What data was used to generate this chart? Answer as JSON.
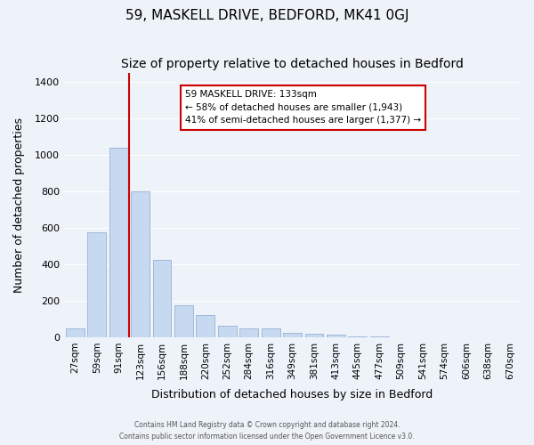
{
  "title": "59, MASKELL DRIVE, BEDFORD, MK41 0GJ",
  "subtitle": "Size of property relative to detached houses in Bedford",
  "xlabel": "Distribution of detached houses by size in Bedford",
  "ylabel": "Number of detached properties",
  "bar_labels": [
    "27sqm",
    "59sqm",
    "91sqm",
    "123sqm",
    "156sqm",
    "188sqm",
    "220sqm",
    "252sqm",
    "284sqm",
    "316sqm",
    "349sqm",
    "381sqm",
    "413sqm",
    "445sqm",
    "477sqm",
    "509sqm",
    "541sqm",
    "574sqm",
    "606sqm",
    "638sqm",
    "670sqm"
  ],
  "bar_values": [
    50,
    575,
    1040,
    800,
    425,
    175,
    120,
    62,
    50,
    50,
    25,
    20,
    15,
    5,
    5,
    0,
    0,
    0,
    0,
    0,
    0
  ],
  "bar_color": "#c6d9f0",
  "bar_edge_color": "#a0b8d8",
  "vline_index": 3,
  "vline_color": "#cc0000",
  "annotation_title": "59 MASKELL DRIVE: 133sqm",
  "annotation_line1": "← 58% of detached houses are smaller (1,943)",
  "annotation_line2": "41% of semi-detached houses are larger (1,377) →",
  "annotation_box_color": "#ffffff",
  "annotation_box_edge": "#cc0000",
  "ylim": [
    0,
    1450
  ],
  "yticks": [
    0,
    200,
    400,
    600,
    800,
    1000,
    1200,
    1400
  ],
  "footer1": "Contains HM Land Registry data © Crown copyright and database right 2024.",
  "footer2": "Contains public sector information licensed under the Open Government Licence v3.0.",
  "bg_color": "#eef2f9",
  "plot_bg_color": "#eef2f9"
}
